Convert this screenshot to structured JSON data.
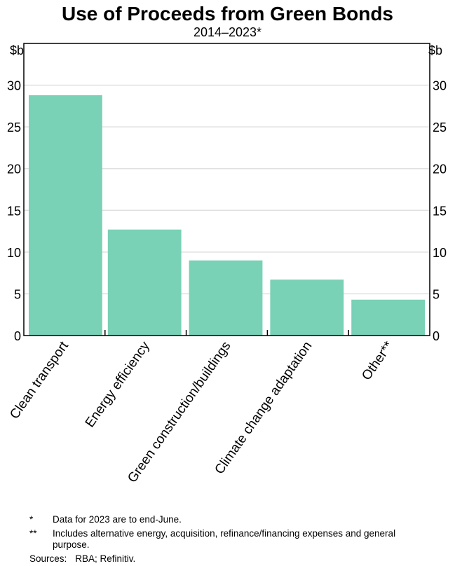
{
  "chart_data": {
    "type": "bar",
    "title": "Use of Proceeds from Green Bonds",
    "subtitle": "2014–2023*",
    "ylabel": "$b",
    "ylabel_right": "$b",
    "ylim": [
      0,
      35
    ],
    "yticks": [
      0,
      5,
      10,
      15,
      20,
      25,
      30
    ],
    "grid": true,
    "categories": [
      "Clean transport",
      "Energy efficiency",
      "Green construction/buildings",
      "Climate change adaptation",
      "Other**"
    ],
    "values": [
      28.8,
      12.7,
      9.0,
      6.7,
      4.3
    ],
    "bar_color": "#79d1b6"
  },
  "notes": [
    {
      "mark": "*",
      "text": "Data for 2023 are to end-June."
    },
    {
      "mark": "**",
      "text": "Includes alternative energy, acquisition, refinance/financing expenses and general purpose."
    }
  ],
  "sources_label": "Sources:",
  "sources": "RBA; Refinitiv."
}
